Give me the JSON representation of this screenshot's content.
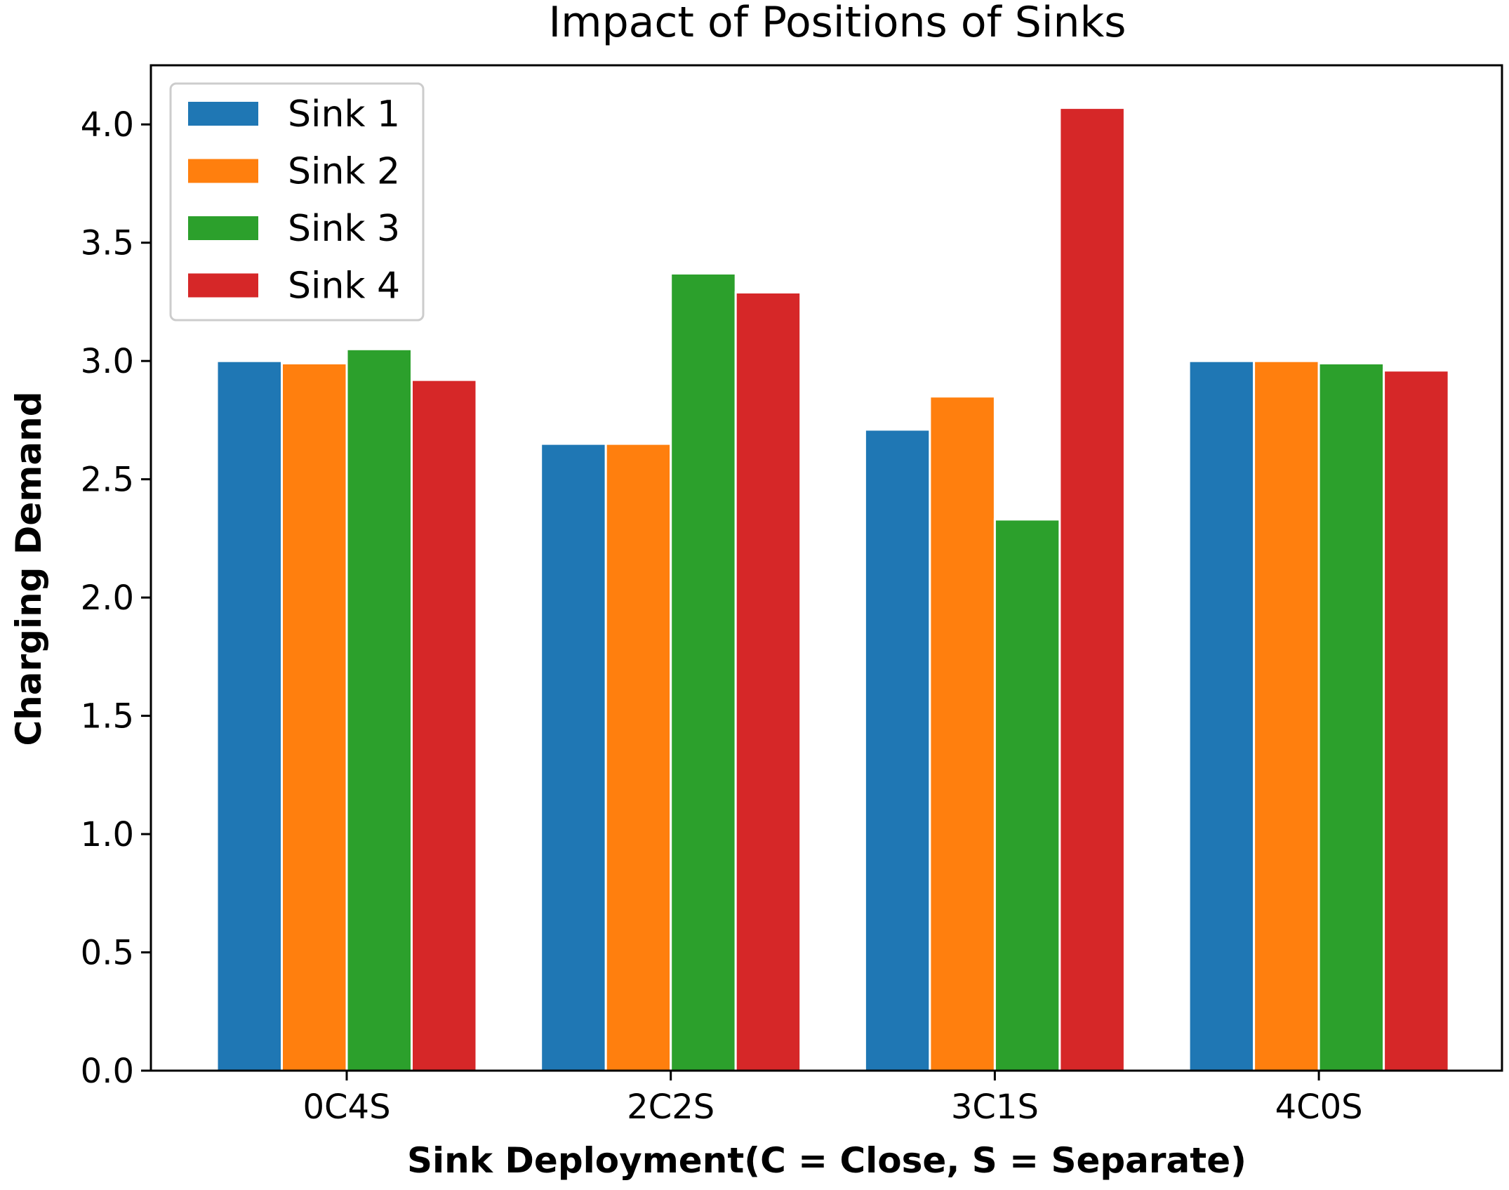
{
  "chart_data": {
    "type": "bar",
    "title": "Impact of Positions of Sinks",
    "xlabel": "Sink Deployment(C = Close, S = Separate)",
    "ylabel": "Charging Demand",
    "categories": [
      "0C4S",
      "2C2S",
      "3C1S",
      "4C0S"
    ],
    "ylim": [
      0,
      4.25
    ],
    "yticks": [
      0.0,
      0.5,
      1.0,
      1.5,
      2.0,
      2.5,
      3.0,
      3.5,
      4.0
    ],
    "ytick_labels": [
      "0.0",
      "0.5",
      "1.0",
      "1.5",
      "2.0",
      "2.5",
      "3.0",
      "3.5",
      "4.0"
    ],
    "grid": false,
    "legend_position": "top-left",
    "series": [
      {
        "name": "Sink 1",
        "color": "#1f77b4",
        "values": [
          3.0,
          2.65,
          2.71,
          3.0
        ]
      },
      {
        "name": "Sink 2",
        "color": "#ff7f0e",
        "values": [
          2.99,
          2.65,
          2.85,
          3.0
        ]
      },
      {
        "name": "Sink 3",
        "color": "#2ca02c",
        "values": [
          3.05,
          3.37,
          2.33,
          2.99
        ]
      },
      {
        "name": "Sink 4",
        "color": "#d62728",
        "values": [
          2.92,
          3.29,
          4.07,
          2.96
        ]
      }
    ]
  }
}
